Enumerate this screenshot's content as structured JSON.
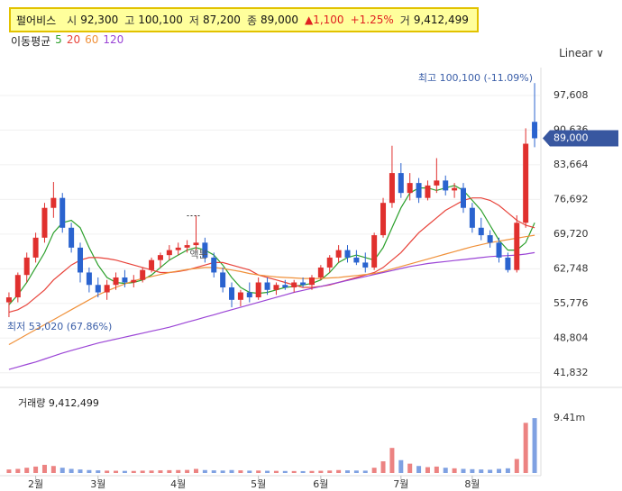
{
  "header": {
    "name": "펄어비스",
    "items": [
      {
        "label": "시",
        "value": "92,300"
      },
      {
        "label": "고",
        "value": "100,100"
      },
      {
        "label": "저",
        "value": "87,200"
      },
      {
        "label": "종",
        "value": "89,000"
      },
      {
        "label": "",
        "value": "▲1,100"
      },
      {
        "label": "",
        "value": "+1.25%"
      },
      {
        "label": "거",
        "value": "9,412,499"
      }
    ],
    "ma_label": "이동평균",
    "scale": "Linear"
  },
  "chart_data": {
    "type": "candlestick",
    "categories": [
      null,
      null,
      null,
      "2월",
      null,
      null,
      null,
      null,
      null,
      null,
      "3월",
      null,
      null,
      null,
      null,
      null,
      null,
      null,
      null,
      "4월",
      null,
      null,
      null,
      null,
      null,
      null,
      null,
      null,
      "5월",
      null,
      null,
      null,
      null,
      null,
      null,
      "6월",
      null,
      null,
      null,
      null,
      null,
      null,
      null,
      null,
      "7월",
      null,
      null,
      null,
      null,
      null,
      null,
      null,
      "8월",
      null,
      null,
      null,
      null,
      null,
      null,
      null
    ],
    "open": [
      56000,
      57000,
      61500,
      65000,
      69000,
      75000,
      77000,
      71000,
      67000,
      62000,
      59500,
      58000,
      59500,
      61000,
      60000,
      60500,
      62500,
      64500,
      65500,
      66500,
      67000,
      67500,
      68000,
      65000,
      62000,
      59000,
      56500,
      58000,
      57000,
      60000,
      58500,
      59500,
      59000,
      60000,
      59500,
      61000,
      63000,
      65000,
      66500,
      65000,
      64000,
      63000,
      69500,
      76000,
      82000,
      78000,
      80000,
      77000,
      79500,
      80500,
      78500,
      79000,
      75000,
      71000,
      69500,
      68000,
      65000,
      62500,
      72000,
      92300
    ],
    "high": [
      58000,
      62000,
      66000,
      70000,
      76000,
      80200,
      78000,
      72000,
      68000,
      63000,
      61000,
      60500,
      62000,
      62500,
      61500,
      63000,
      65000,
      66000,
      67500,
      68000,
      68500,
      73500,
      69000,
      66000,
      63000,
      60000,
      58500,
      60000,
      61000,
      61000,
      60000,
      60500,
      60500,
      61000,
      61500,
      63500,
      65500,
      67500,
      67500,
      66500,
      66000,
      70000,
      77000,
      87500,
      84000,
      82000,
      81000,
      80500,
      85000,
      81500,
      80000,
      80000,
      76000,
      73000,
      70500,
      69000,
      66000,
      73500,
      91000,
      100100
    ],
    "low": [
      53020,
      56000,
      60000,
      64000,
      68000,
      73000,
      70000,
      66000,
      60000,
      58000,
      57000,
      56500,
      58500,
      59000,
      59000,
      60000,
      62000,
      63000,
      64500,
      65500,
      66000,
      66500,
      64000,
      61000,
      58000,
      55000,
      55200,
      56000,
      56500,
      57500,
      57500,
      58500,
      58000,
      59000,
      58500,
      60500,
      62000,
      64000,
      64000,
      63500,
      62000,
      62500,
      69000,
      75000,
      77000,
      76500,
      76000,
      76500,
      78000,
      77500,
      77000,
      74000,
      70000,
      68500,
      67000,
      64000,
      62000,
      62000,
      71000,
      87200
    ],
    "close": [
      57000,
      61500,
      65000,
      69000,
      75000,
      77000,
      71000,
      67000,
      62000,
      59500,
      58000,
      59500,
      61000,
      60000,
      60500,
      62500,
      64500,
      65500,
      66500,
      67000,
      67500,
      68000,
      65000,
      62000,
      59000,
      56500,
      58000,
      57000,
      60000,
      58500,
      59500,
      59000,
      60000,
      59500,
      61000,
      63000,
      65000,
      66500,
      65000,
      64000,
      63000,
      69500,
      76000,
      82000,
      78000,
      80000,
      77000,
      79500,
      80500,
      78500,
      79000,
      75000,
      71000,
      69500,
      68000,
      65000,
      62500,
      72000,
      87900,
      89000
    ],
    "volume": [
      600000,
      700000,
      900000,
      1100000,
      1400000,
      1200000,
      900000,
      700000,
      600000,
      500000,
      450000,
      400000,
      380000,
      360000,
      350000,
      400000,
      420000,
      450000,
      480000,
      500000,
      520000,
      700000,
      500000,
      450000,
      420000,
      500000,
      450000,
      400000,
      420000,
      380000,
      360000,
      340000,
      330000,
      320000,
      350000,
      380000,
      420000,
      500000,
      450000,
      420000,
      400000,
      900000,
      2000000,
      4300000,
      2200000,
      1600000,
      1200000,
      1000000,
      1100000,
      900000,
      800000,
      700000,
      650000,
      600000,
      550000,
      700000,
      800000,
      2400000,
      8600000,
      9412499
    ],
    "series": [
      {
        "name": "5",
        "color": "#2ca02c",
        "values": [
          55500,
          57500,
          60000,
          63000,
          66000,
          70000,
          72000,
          72500,
          71000,
          67000,
          63500,
          61000,
          60000,
          59800,
          60000,
          60500,
          61500,
          63000,
          64500,
          65500,
          66500,
          67000,
          66500,
          65500,
          63500,
          61000,
          59000,
          58000,
          57800,
          58000,
          58500,
          59000,
          59200,
          59500,
          59800,
          60500,
          62000,
          64000,
          65000,
          65500,
          65000,
          64500,
          67000,
          71000,
          75000,
          78000,
          79000,
          79000,
          78500,
          79000,
          79500,
          78500,
          76500,
          74500,
          71500,
          68500,
          66500,
          66500,
          68000,
          72000
        ]
      },
      {
        "name": "20",
        "color": "#e8433a",
        "values": [
          54000,
          54500,
          55500,
          57000,
          58500,
          60500,
          62000,
          63500,
          64500,
          65000,
          65000,
          64800,
          64500,
          64000,
          63500,
          63000,
          62500,
          62000,
          62000,
          62200,
          62500,
          63000,
          63500,
          64000,
          64000,
          63500,
          63000,
          62500,
          61500,
          61000,
          60500,
          60000,
          59500,
          59000,
          59000,
          59200,
          59500,
          60000,
          60500,
          61000,
          61500,
          62000,
          63000,
          64500,
          66000,
          68000,
          70000,
          71500,
          73000,
          74500,
          75500,
          76500,
          77000,
          77000,
          76500,
          75500,
          74000,
          72500,
          71500,
          71000
        ]
      },
      {
        "name": "60",
        "color": "#f0913a",
        "values": [
          47500,
          48500,
          49500,
          50500,
          51500,
          52500,
          53500,
          54500,
          55500,
          56500,
          57500,
          58300,
          59000,
          59700,
          60300,
          60800,
          61200,
          61600,
          62000,
          62300,
          62600,
          62800,
          63000,
          63000,
          62800,
          62500,
          62200,
          61800,
          61500,
          61300,
          61100,
          61000,
          60900,
          60800,
          60800,
          60800,
          60900,
          61000,
          61200,
          61400,
          61600,
          61800,
          62200,
          62700,
          63200,
          63700,
          64200,
          64700,
          65200,
          65700,
          66200,
          66700,
          67200,
          67600,
          68000,
          68300,
          68600,
          68900,
          69200,
          69500
        ]
      },
      {
        "name": "120",
        "color": "#9b45d6",
        "values": [
          42500,
          43000,
          43500,
          44000,
          44600,
          45200,
          45800,
          46300,
          46800,
          47300,
          47800,
          48200,
          48600,
          49000,
          49400,
          49800,
          50200,
          50600,
          51000,
          51500,
          52000,
          52500,
          53000,
          53500,
          54000,
          54500,
          55000,
          55500,
          56000,
          56500,
          57000,
          57500,
          58000,
          58400,
          58800,
          59200,
          59600,
          60000,
          60400,
          60800,
          61200,
          61600,
          62000,
          62400,
          62800,
          63200,
          63500,
          63800,
          64000,
          64200,
          64400,
          64600,
          64800,
          65000,
          65200,
          65300,
          65400,
          65500,
          65700,
          66000
        ]
      }
    ],
    "ylim": [
      40700,
      100500
    ],
    "yticks": [
      {
        "value": 41832,
        "label": "41,832"
      },
      {
        "value": 48804,
        "label": "48,804"
      },
      {
        "value": 55776,
        "label": "55,776"
      },
      {
        "value": 62748,
        "label": "62,748"
      },
      {
        "value": 69720,
        "label": "69,720"
      },
      {
        "value": 76692,
        "label": "76,692"
      },
      {
        "value": 83664,
        "label": "83,664"
      },
      {
        "value": 90636,
        "label": "90,636"
      },
      {
        "value": 97608,
        "label": "97,608"
      }
    ],
    "current_price": {
      "value": 89000,
      "label": "89,000"
    },
    "high_note": "최고 100,100 (-11.09%)",
    "low_note": "최저 53,020 (67.86%)",
    "event_note": "액분",
    "event_index": 21,
    "volume_label": "거래량 9,412,499",
    "volume_lim": [
      0,
      13600000
    ],
    "volume_ticks": [
      {
        "value": 9412499,
        "label": "9.41m"
      }
    ],
    "up_color": "#e0302e",
    "down_color": "#2a63cf",
    "grid": true
  }
}
